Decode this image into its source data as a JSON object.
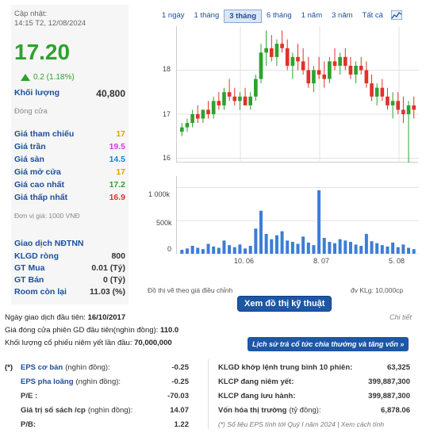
{
  "header": {
    "updated_label": "Cập nhật:",
    "updated_time": "14:15 T2, 12/08/2024",
    "price": "17.20",
    "change": "0.2 (1.18%)",
    "volume_label": "Khối lượng",
    "volume_value": "40,800",
    "status": "Đóng cửa"
  },
  "prices": [
    {
      "label": "Giá tham chiếu",
      "value": "17",
      "color": "#d9a400"
    },
    {
      "label": "Giá trần",
      "value": "19.5",
      "color": "#d23ad6"
    },
    {
      "label": "Giá sàn",
      "value": "14.5",
      "color": "#1a7fd4"
    },
    {
      "label": "Giá mở cửa",
      "value": "17",
      "color": "#d9a400"
    },
    {
      "label": "Giá cao nhất",
      "value": "17.2",
      "color": "#2fa12f"
    },
    {
      "label": "Giá thấp nhất",
      "value": "16.9",
      "color": "#e0322a"
    }
  ],
  "unit_note": "Đơn vị giá: 1000 VNĐ",
  "foreign": {
    "title": "Giao dịch NĐTNN",
    "rows": [
      {
        "label": "KLGD ròng",
        "value": "800"
      },
      {
        "label": "GT Mua",
        "value": "0.01 (Tỷ)"
      },
      {
        "label": "GT Bán",
        "value": "0 (Tỷ)"
      },
      {
        "label": "Room còn lại",
        "value": "11.03 (%)"
      }
    ]
  },
  "tabs": [
    "1 ngày",
    "1 tháng",
    "3 tháng",
    "6 tháng",
    "1 năm",
    "3 năm",
    "Tất cả"
  ],
  "chart": {
    "y_ticks": [
      "18",
      "17",
      "16"
    ],
    "vol_ticks": [
      "1 000k",
      "500k",
      "0"
    ],
    "x_ticks": [
      "10. 06",
      "8. 07",
      "5. 08"
    ],
    "note_left": "Đồ thị vẽ theo giá điều chỉnh",
    "note_right": "đv KLg: 10,000cp"
  },
  "chart_data": {
    "type": "candlestick",
    "ylim": [
      15.9,
      19.0
    ],
    "ohlc": [
      [
        16.6,
        16.8,
        16.5,
        16.7
      ],
      [
        16.7,
        16.9,
        16.6,
        16.8
      ],
      [
        16.8,
        17.1,
        16.7,
        17.0
      ],
      [
        17.0,
        17.2,
        16.8,
        16.9
      ],
      [
        16.9,
        17.1,
        16.8,
        17.1
      ],
      [
        17.1,
        17.3,
        16.9,
        17.0
      ],
      [
        17.0,
        17.4,
        16.9,
        17.3
      ],
      [
        17.3,
        17.5,
        17.1,
        17.2
      ],
      [
        17.2,
        17.6,
        17.1,
        17.5
      ],
      [
        17.5,
        17.8,
        17.3,
        17.4
      ],
      [
        17.4,
        17.6,
        17.2,
        17.3
      ],
      [
        17.3,
        17.5,
        17.1,
        17.4
      ],
      [
        17.4,
        17.6,
        17.2,
        17.2
      ],
      [
        17.2,
        17.5,
        17.1,
        17.4
      ],
      [
        17.4,
        17.9,
        17.3,
        17.8
      ],
      [
        17.8,
        18.6,
        17.7,
        18.4
      ],
      [
        18.4,
        18.9,
        18.1,
        18.5
      ],
      [
        18.5,
        18.8,
        18.2,
        18.3
      ],
      [
        18.3,
        18.7,
        18.1,
        18.6
      ],
      [
        18.6,
        18.9,
        18.4,
        18.5
      ],
      [
        18.5,
        18.7,
        18.0,
        18.1
      ],
      [
        18.1,
        18.4,
        17.8,
        18.3
      ],
      [
        18.3,
        18.6,
        18.0,
        18.2
      ],
      [
        18.2,
        18.5,
        17.9,
        18.0
      ],
      [
        18.0,
        18.3,
        17.6,
        17.7
      ],
      [
        17.7,
        18.1,
        17.5,
        18.0
      ],
      [
        18.0,
        18.3,
        17.8,
        17.9
      ],
      [
        17.9,
        18.2,
        17.6,
        17.8
      ],
      [
        17.8,
        18.3,
        17.7,
        18.2
      ],
      [
        18.2,
        18.5,
        18.0,
        18.1
      ],
      [
        18.1,
        18.4,
        17.9,
        18.3
      ],
      [
        18.3,
        18.5,
        18.0,
        18.1
      ],
      [
        18.1,
        18.3,
        17.8,
        17.9
      ],
      [
        17.9,
        18.2,
        17.7,
        18.1
      ],
      [
        18.1,
        18.3,
        17.9,
        18.0
      ],
      [
        18.0,
        18.2,
        17.6,
        17.7
      ],
      [
        17.7,
        17.9,
        17.3,
        17.4
      ],
      [
        17.4,
        17.7,
        17.2,
        17.6
      ],
      [
        17.6,
        17.8,
        17.3,
        17.4
      ],
      [
        17.4,
        17.6,
        17.1,
        17.2
      ],
      [
        17.2,
        17.5,
        16.9,
        17.3
      ],
      [
        17.3,
        17.5,
        17.0,
        17.1
      ],
      [
        17.1,
        17.4,
        16.8,
        17.0
      ],
      [
        17.0,
        17.3,
        15.9,
        17.2
      ],
      [
        17.2,
        17.4,
        16.9,
        17.1
      ]
    ],
    "volume_k": [
      60,
      80,
      120,
      90,
      70,
      150,
      110,
      90,
      200,
      130,
      100,
      140,
      80,
      120,
      380,
      650,
      300,
      220,
      280,
      340,
      200,
      180,
      150,
      260,
      170,
      130,
      960,
      240,
      180,
      160,
      220,
      200,
      180,
      140,
      120,
      300,
      190,
      160,
      130,
      110,
      170,
      100,
      140,
      90,
      70
    ]
  },
  "tech_button": "Xem đồ thị kỹ thuật",
  "listing": {
    "first_trade_label": "Ngày giao dịch đầu tiên:",
    "first_trade": "16/10/2017",
    "first_price_label": "Giá đóng cửa phiên GD đầu tiên(nghìn đồng):",
    "first_price": "110.0",
    "initial_shares_label": "Khối lượng cổ phiếu niêm yết lần đầu:",
    "initial_shares": "70,000,000",
    "detail_link": "Chi tiết",
    "history_button": "Lịch sử trả cổ tức chia thưởng và tăng vốn »"
  },
  "fundamentals_left": {
    "star": "(*)",
    "rows": [
      {
        "label": "EPS cơ bản",
        "unit": "(nghìn đồng):",
        "value": "-0.25",
        "linked": true
      },
      {
        "label": "EPS pha loãng",
        "unit": "(nghìn đồng):",
        "value": "-0.25",
        "linked": true
      },
      {
        "label": "P/E :",
        "unit": "",
        "value": "-70.03",
        "linked": false
      },
      {
        "label": "Giá trị sổ sách /cp",
        "unit": "(nghìn đồng):",
        "value": "14.07",
        "linked": false
      },
      {
        "label": "P/B:",
        "unit": "",
        "value": "1.22",
        "linked": false
      }
    ]
  },
  "fundamentals_right": {
    "rows": [
      {
        "label": "KLGD khớp lệnh trung bình 10 phiên:",
        "value": "63,325"
      },
      {
        "label": "KLCP đang niêm yết:",
        "value": "399,887,300"
      },
      {
        "label": "KLCP đang lưu hành:",
        "value": "399,887,300"
      },
      {
        "label": "Vốn hóa thị trường",
        "unit": "(tỷ đồng):",
        "value": "6,878.06"
      }
    ],
    "footnote": "(*) Số liệu EPS tính tới Quý I năm 2024 | Xem cách tính"
  }
}
